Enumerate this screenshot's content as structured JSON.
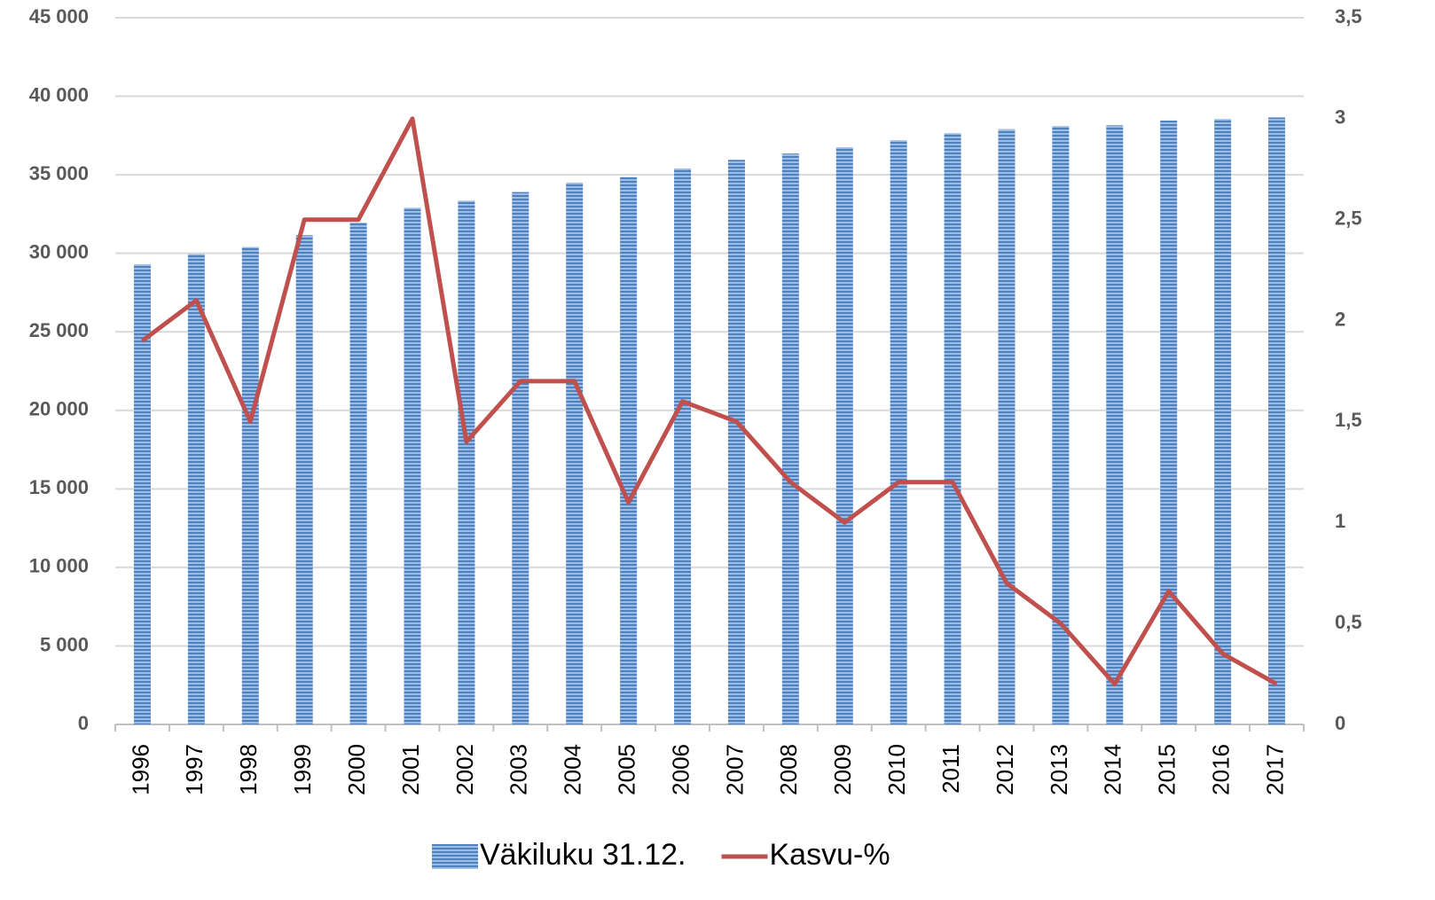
{
  "chart_data": {
    "type": "bar_line",
    "categories": [
      "1996",
      "1997",
      "1998",
      "1999",
      "2000",
      "2001",
      "2002",
      "2003",
      "2004",
      "2005",
      "2006",
      "2007",
      "2008",
      "2009",
      "2010",
      "2011",
      "2012",
      "2013",
      "2014",
      "2015",
      "2016",
      "2017"
    ],
    "series": [
      {
        "name": "Väkiluku 31.12.",
        "type": "bar",
        "color": "#4f81bd",
        "values": [
          29300,
          29950,
          30400,
          31150,
          31950,
          32900,
          33350,
          33900,
          34500,
          34850,
          35400,
          35950,
          36350,
          36750,
          37200,
          37650,
          37900,
          38100,
          38150,
          38450,
          38550,
          38650
        ]
      },
      {
        "name": "Kasvu-%",
        "type": "line",
        "axis": "y2",
        "color": "#c0504d",
        "values": [
          1.9,
          2.1,
          1.5,
          2.5,
          2.5,
          3.0,
          1.4,
          1.7,
          1.7,
          1.1,
          1.6,
          1.5,
          1.2,
          1.0,
          1.2,
          1.2,
          0.7,
          0.5,
          0.2,
          0.66,
          0.35,
          0.2
        ]
      }
    ],
    "ylim": [
      0,
      45000
    ],
    "yticks": [
      {
        "value": 0,
        "label": "0"
      },
      {
        "value": 5000,
        "label": "5 000"
      },
      {
        "value": 10000,
        "label": "10 000"
      },
      {
        "value": 15000,
        "label": "15 000"
      },
      {
        "value": 20000,
        "label": "20 000"
      },
      {
        "value": 25000,
        "label": "25 000"
      },
      {
        "value": 30000,
        "label": "30 000"
      },
      {
        "value": 35000,
        "label": "35 000"
      },
      {
        "value": 40000,
        "label": "40 000"
      },
      {
        "value": 45000,
        "label": "45 000"
      }
    ],
    "y2lim": [
      0,
      3.5
    ],
    "y2ticks": [
      0,
      {
        "value": 0.5,
        "label": "0,5"
      },
      1,
      {
        "value": 1.5,
        "label": "1,5"
      },
      2,
      {
        "value": 2.5,
        "label": "2,5"
      },
      3,
      {
        "value": 3.5,
        "label": "3,5"
      }
    ],
    "grid": true,
    "legend": "bottom"
  }
}
